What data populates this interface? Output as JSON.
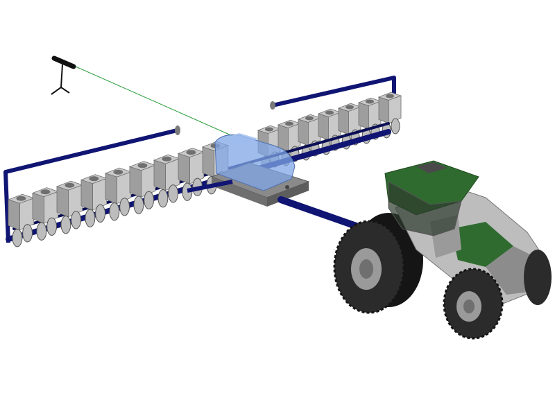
{
  "scene": {
    "background_color": "#ffffff",
    "frame_color": "#101573",
    "hopper_count_front": 9,
    "hopper_count_rear": 7
  },
  "colors": {
    "frame": "#101573",
    "frame_dark": "#0a0e55",
    "hopper": "#c9c9c9",
    "hopper_shade": "#9e9e9e",
    "hopper_dark": "#6f6f6f",
    "tank": "#7fa6e6",
    "tank_box": "#8a8a8a",
    "tractor_body": "#bdbdbd",
    "tractor_green": "#2f6b2f",
    "tractor_cab": "#2e3a2e",
    "tire": "#2b2b2b",
    "tire_tread": "#151515",
    "rim": "#9a9a9a",
    "sight_line": "#2a9d3a",
    "tripod": "#111111"
  },
  "icons": {
    "camera": "camera-tripod-icon",
    "planter": "planter-machine-icon",
    "tractor": "tractor-icon"
  }
}
